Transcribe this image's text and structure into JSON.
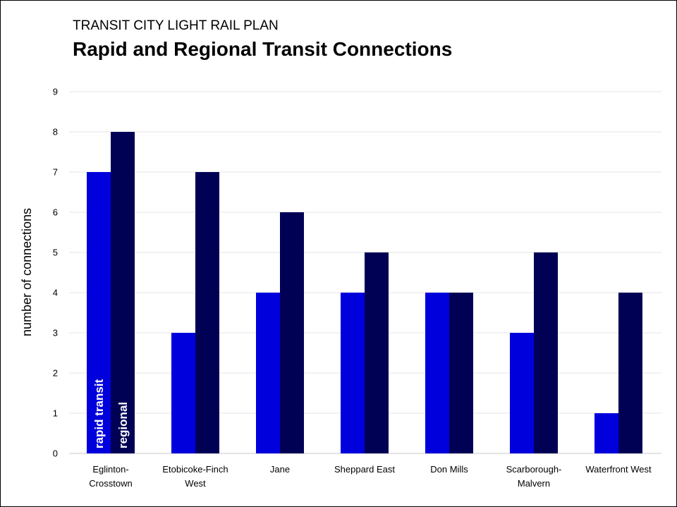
{
  "chart_data": {
    "type": "bar",
    "supertitle": "TRANSIT CITY LIGHT RAIL PLAN",
    "title": "Rapid and Regional Transit Connections",
    "xlabel": "",
    "ylabel": "number of connections",
    "ylim": [
      0,
      9
    ],
    "yticks": [
      0,
      1,
      2,
      3,
      4,
      5,
      6,
      7,
      8,
      9
    ],
    "grid": true,
    "categories": [
      [
        "Eglinton-",
        "Crosstown"
      ],
      [
        "Etobicoke-Finch",
        "West"
      ],
      [
        "Jane"
      ],
      [
        "Sheppard East"
      ],
      [
        "Don Mills"
      ],
      [
        "Scarborough-",
        "Malvern"
      ],
      [
        "Waterfront West"
      ]
    ],
    "series": [
      {
        "name": "rapid transit",
        "color": "#0000dd",
        "values": [
          7,
          3,
          4,
          4,
          4,
          3,
          1
        ]
      },
      {
        "name": "regional",
        "color": "#000055",
        "values": [
          8,
          7,
          6,
          5,
          4,
          5,
          4
        ]
      }
    ]
  }
}
